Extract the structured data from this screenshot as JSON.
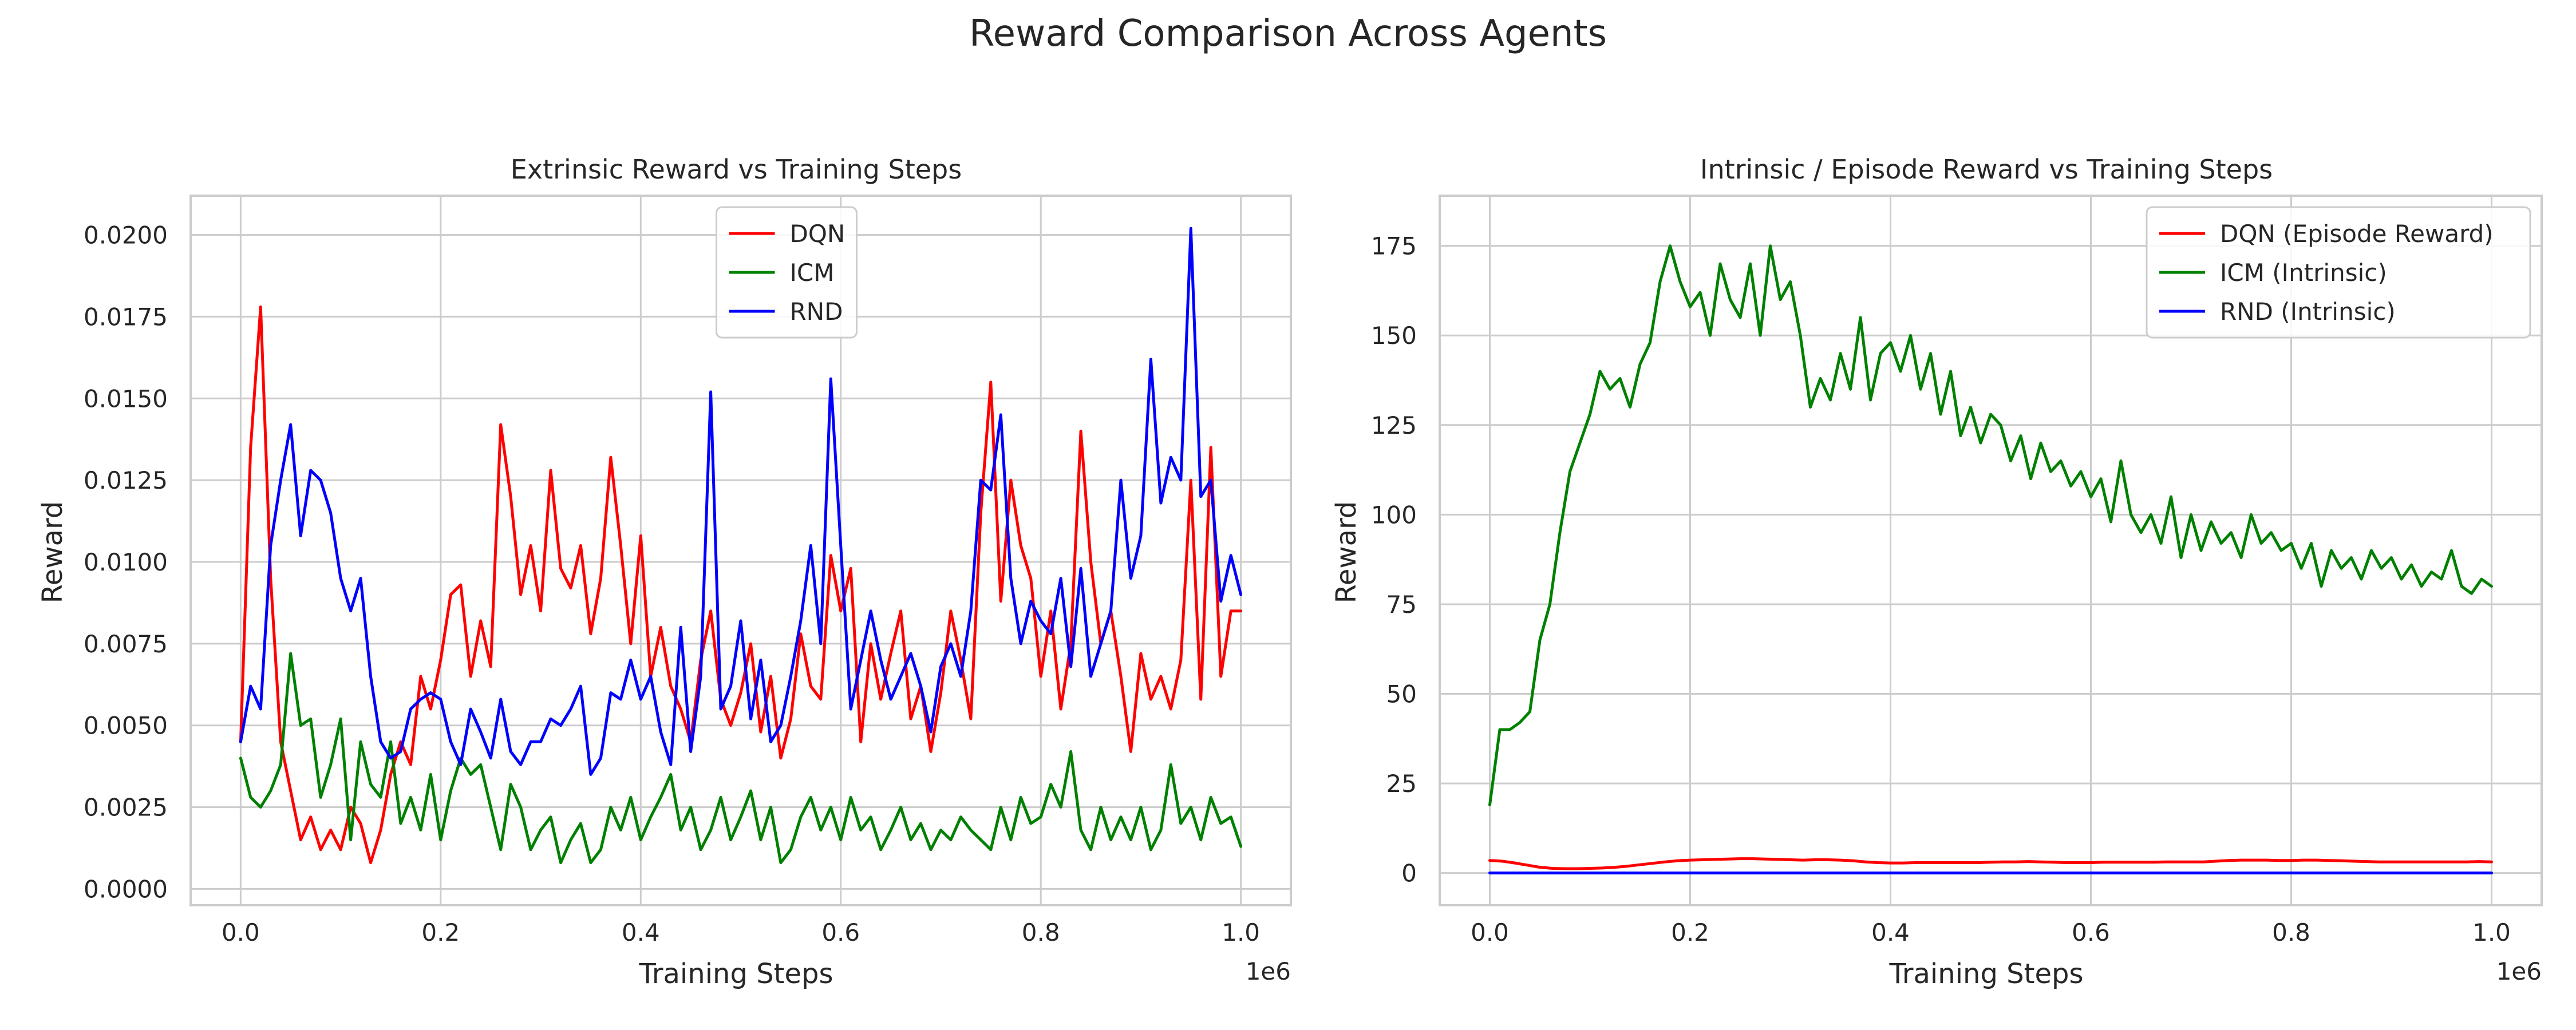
{
  "suptitle": "Reward Comparison Across Agents",
  "colors": {
    "DQN": "#ff0000",
    "ICM": "#008000",
    "RND": "#0000ff",
    "grid": "#cccccc",
    "frame": "#cccccc"
  },
  "chart_data": [
    {
      "type": "line",
      "title": "Extrinsic Reward vs Training Steps",
      "xlabel": "Training Steps",
      "ylabel": "Reward",
      "x_offset_label": "1e6",
      "x_scale": 1000000,
      "xlim": [
        -0.05,
        1.05
      ],
      "ylim": [
        -0.0005,
        0.0212
      ],
      "xticks": [
        0.0,
        0.2,
        0.4,
        0.6,
        0.8,
        1.0
      ],
      "xtick_labels": [
        "0.0",
        "0.2",
        "0.4",
        "0.6",
        "0.8",
        "1.0"
      ],
      "yticks": [
        0.0,
        0.0025,
        0.005,
        0.0075,
        0.01,
        0.0125,
        0.015,
        0.0175,
        0.02
      ],
      "ytick_labels": [
        "0.0000",
        "0.0025",
        "0.0050",
        "0.0075",
        "0.0100",
        "0.0125",
        "0.0150",
        "0.0175",
        "0.0200"
      ],
      "grid": true,
      "legend_position": "upper center",
      "x": [
        0.0,
        0.01,
        0.02,
        0.03,
        0.04,
        0.05,
        0.06,
        0.07,
        0.08,
        0.09,
        0.1,
        0.11,
        0.12,
        0.13,
        0.14,
        0.15,
        0.16,
        0.17,
        0.18,
        0.19,
        0.2,
        0.21,
        0.22,
        0.23,
        0.24,
        0.25,
        0.26,
        0.27,
        0.28,
        0.29,
        0.3,
        0.31,
        0.32,
        0.33,
        0.34,
        0.35,
        0.36,
        0.37,
        0.38,
        0.39,
        0.4,
        0.41,
        0.42,
        0.43,
        0.44,
        0.45,
        0.46,
        0.47,
        0.48,
        0.49,
        0.5,
        0.51,
        0.52,
        0.53,
        0.54,
        0.55,
        0.56,
        0.57,
        0.58,
        0.59,
        0.6,
        0.61,
        0.62,
        0.63,
        0.64,
        0.65,
        0.66,
        0.67,
        0.68,
        0.69,
        0.7,
        0.71,
        0.72,
        0.73,
        0.74,
        0.75,
        0.76,
        0.77,
        0.78,
        0.79,
        0.8,
        0.81,
        0.82,
        0.83,
        0.84,
        0.85,
        0.86,
        0.87,
        0.88,
        0.89,
        0.9,
        0.91,
        0.92,
        0.93,
        0.94,
        0.95,
        0.96,
        0.97,
        0.98,
        0.99,
        1.0
      ],
      "series": [
        {
          "name": "DQN",
          "color": "#ff0000",
          "values": [
            0.0045,
            0.0135,
            0.0178,
            0.0095,
            0.0045,
            0.003,
            0.0015,
            0.0022,
            0.0012,
            0.0018,
            0.0012,
            0.0025,
            0.002,
            0.0008,
            0.0018,
            0.0035,
            0.0045,
            0.0038,
            0.0065,
            0.0055,
            0.007,
            0.009,
            0.0093,
            0.0065,
            0.0082,
            0.0068,
            0.0142,
            0.012,
            0.009,
            0.0105,
            0.0085,
            0.0128,
            0.0098,
            0.0092,
            0.0105,
            0.0078,
            0.0095,
            0.0132,
            0.0105,
            0.0075,
            0.0108,
            0.0065,
            0.008,
            0.0062,
            0.0055,
            0.0045,
            0.007,
            0.0085,
            0.0058,
            0.005,
            0.006,
            0.0075,
            0.0048,
            0.0065,
            0.004,
            0.0052,
            0.0078,
            0.0062,
            0.0058,
            0.0102,
            0.0085,
            0.0098,
            0.0045,
            0.0075,
            0.0058,
            0.0072,
            0.0085,
            0.0052,
            0.0062,
            0.0042,
            0.006,
            0.0085,
            0.007,
            0.0052,
            0.0115,
            0.0155,
            0.0088,
            0.0125,
            0.0105,
            0.0095,
            0.0065,
            0.0085,
            0.0055,
            0.0075,
            0.014,
            0.01,
            0.0075,
            0.0085,
            0.0065,
            0.0042,
            0.0072,
            0.0058,
            0.0065,
            0.0055,
            0.007,
            0.0125,
            0.0058,
            0.0135,
            0.0065,
            0.0085,
            0.0085
          ]
        },
        {
          "name": "ICM",
          "color": "#008000",
          "values": [
            0.004,
            0.0028,
            0.0025,
            0.003,
            0.0038,
            0.0072,
            0.005,
            0.0052,
            0.0028,
            0.0038,
            0.0052,
            0.0015,
            0.0045,
            0.0032,
            0.0028,
            0.0045,
            0.002,
            0.0028,
            0.0018,
            0.0035,
            0.0015,
            0.003,
            0.004,
            0.0035,
            0.0038,
            0.0025,
            0.0012,
            0.0032,
            0.0025,
            0.0012,
            0.0018,
            0.0022,
            0.0008,
            0.0015,
            0.002,
            0.0008,
            0.0012,
            0.0025,
            0.0018,
            0.0028,
            0.0015,
            0.0022,
            0.0028,
            0.0035,
            0.0018,
            0.0025,
            0.0012,
            0.0018,
            0.0028,
            0.0015,
            0.0022,
            0.003,
            0.0015,
            0.0025,
            0.0008,
            0.0012,
            0.0022,
            0.0028,
            0.0018,
            0.0025,
            0.0015,
            0.0028,
            0.0018,
            0.0022,
            0.0012,
            0.0018,
            0.0025,
            0.0015,
            0.002,
            0.0012,
            0.0018,
            0.0015,
            0.0022,
            0.0018,
            0.0015,
            0.0012,
            0.0025,
            0.0015,
            0.0028,
            0.002,
            0.0022,
            0.0032,
            0.0025,
            0.0042,
            0.0018,
            0.0012,
            0.0025,
            0.0015,
            0.0022,
            0.0015,
            0.0025,
            0.0012,
            0.0018,
            0.0038,
            0.002,
            0.0025,
            0.0015,
            0.0028,
            0.002,
            0.0022,
            0.0013
          ]
        },
        {
          "name": "RND",
          "color": "#0000ff",
          "values": [
            0.0045,
            0.0062,
            0.0055,
            0.0105,
            0.0125,
            0.0142,
            0.0108,
            0.0128,
            0.0125,
            0.0115,
            0.0095,
            0.0085,
            0.0095,
            0.0065,
            0.0045,
            0.004,
            0.0042,
            0.0055,
            0.0058,
            0.006,
            0.0058,
            0.0045,
            0.0038,
            0.0055,
            0.0048,
            0.004,
            0.0058,
            0.0042,
            0.0038,
            0.0045,
            0.0045,
            0.0052,
            0.005,
            0.0055,
            0.0062,
            0.0035,
            0.004,
            0.006,
            0.0058,
            0.007,
            0.0058,
            0.0065,
            0.0048,
            0.0038,
            0.008,
            0.0042,
            0.0065,
            0.0152,
            0.0055,
            0.0062,
            0.0082,
            0.0052,
            0.007,
            0.0045,
            0.005,
            0.0065,
            0.0082,
            0.0105,
            0.0075,
            0.0156,
            0.0105,
            0.0055,
            0.007,
            0.0085,
            0.007,
            0.0058,
            0.0065,
            0.0072,
            0.0062,
            0.0048,
            0.0068,
            0.0075,
            0.0065,
            0.0085,
            0.0125,
            0.0122,
            0.0145,
            0.0095,
            0.0075,
            0.0088,
            0.0082,
            0.0078,
            0.0095,
            0.0068,
            0.0098,
            0.0065,
            0.0075,
            0.0085,
            0.0125,
            0.0095,
            0.0108,
            0.0162,
            0.0118,
            0.0132,
            0.0125,
            0.0202,
            0.012,
            0.0125,
            0.0088,
            0.0102,
            0.009
          ]
        }
      ]
    },
    {
      "type": "line",
      "title": "Intrinsic / Episode Reward vs Training Steps",
      "xlabel": "Training Steps",
      "ylabel": "Reward",
      "x_offset_label": "1e6",
      "x_scale": 1000000,
      "xlim": [
        -0.05,
        1.05
      ],
      "ylim": [
        -9,
        189
      ],
      "xticks": [
        0.0,
        0.2,
        0.4,
        0.6,
        0.8,
        1.0
      ],
      "xtick_labels": [
        "0.0",
        "0.2",
        "0.4",
        "0.6",
        "0.8",
        "1.0"
      ],
      "yticks": [
        0,
        25,
        50,
        75,
        100,
        125,
        150,
        175
      ],
      "ytick_labels": [
        "0",
        "25",
        "50",
        "75",
        "100",
        "125",
        "150",
        "175"
      ],
      "grid": true,
      "legend_position": "upper right",
      "x": [
        0.0,
        0.01,
        0.02,
        0.03,
        0.04,
        0.05,
        0.06,
        0.07,
        0.08,
        0.09,
        0.1,
        0.11,
        0.12,
        0.13,
        0.14,
        0.15,
        0.16,
        0.17,
        0.18,
        0.19,
        0.2,
        0.21,
        0.22,
        0.23,
        0.24,
        0.25,
        0.26,
        0.27,
        0.28,
        0.29,
        0.3,
        0.31,
        0.32,
        0.33,
        0.34,
        0.35,
        0.36,
        0.37,
        0.38,
        0.39,
        0.4,
        0.41,
        0.42,
        0.43,
        0.44,
        0.45,
        0.46,
        0.47,
        0.48,
        0.49,
        0.5,
        0.51,
        0.52,
        0.53,
        0.54,
        0.55,
        0.56,
        0.57,
        0.58,
        0.59,
        0.6,
        0.61,
        0.62,
        0.63,
        0.64,
        0.65,
        0.66,
        0.67,
        0.68,
        0.69,
        0.7,
        0.71,
        0.72,
        0.73,
        0.74,
        0.75,
        0.76,
        0.77,
        0.78,
        0.79,
        0.8,
        0.81,
        0.82,
        0.83,
        0.84,
        0.85,
        0.86,
        0.87,
        0.88,
        0.89,
        0.9,
        0.91,
        0.92,
        0.93,
        0.94,
        0.95,
        0.96,
        0.97,
        0.98,
        0.99,
        1.0
      ],
      "series": [
        {
          "name": "DQN (Episode Reward)",
          "color": "#ff0000",
          "values": [
            3.5,
            3.3,
            2.8,
            2.2,
            1.6,
            1.3,
            1.2,
            1.2,
            1.3,
            1.4,
            1.6,
            1.9,
            2.3,
            2.7,
            3.1,
            3.4,
            3.6,
            3.7,
            3.8,
            3.9,
            4.0,
            4.0,
            3.9,
            3.8,
            3.7,
            3.6,
            3.7,
            3.7,
            3.6,
            3.4,
            3.1,
            2.9,
            2.8,
            2.8,
            2.9,
            2.9,
            2.9,
            2.9,
            2.9,
            2.9,
            3.0,
            3.1,
            3.1,
            3.2,
            3.1,
            3.0,
            2.9,
            2.9,
            2.9,
            3.0,
            3.0,
            3.0,
            3.0,
            3.0,
            3.1,
            3.1,
            3.1,
            3.1,
            3.3,
            3.5,
            3.6,
            3.6,
            3.6,
            3.5,
            3.5,
            3.6,
            3.6,
            3.5,
            3.4,
            3.3,
            3.2,
            3.1,
            3.1,
            3.1,
            3.1,
            3.1,
            3.1,
            3.1,
            3.1,
            3.2,
            3.1
          ],
          "x": [
            0.0,
            0.0125,
            0.025,
            0.0375,
            0.05,
            0.0625,
            0.075,
            0.0875,
            0.1,
            0.1125,
            0.125,
            0.1375,
            0.15,
            0.1625,
            0.175,
            0.1875,
            0.2,
            0.2125,
            0.225,
            0.2375,
            0.25,
            0.2625,
            0.275,
            0.2875,
            0.3,
            0.3125,
            0.325,
            0.3375,
            0.35,
            0.3625,
            0.375,
            0.3875,
            0.4,
            0.4125,
            0.425,
            0.4375,
            0.45,
            0.4625,
            0.475,
            0.4875,
            0.5,
            0.5125,
            0.525,
            0.5375,
            0.55,
            0.5625,
            0.575,
            0.5875,
            0.6,
            0.6125,
            0.625,
            0.6375,
            0.65,
            0.6625,
            0.675,
            0.6875,
            0.7,
            0.7125,
            0.725,
            0.7375,
            0.75,
            0.7625,
            0.775,
            0.7875,
            0.8,
            0.8125,
            0.825,
            0.8375,
            0.85,
            0.8625,
            0.875,
            0.8875,
            0.9,
            0.9125,
            0.925,
            0.9375,
            0.95,
            0.9625,
            0.975,
            0.9875,
            1.0
          ]
        },
        {
          "name": "ICM (Intrinsic)",
          "color": "#008000",
          "values": [
            19,
            40,
            40,
            42,
            45,
            65,
            75,
            95,
            112,
            120,
            128,
            140,
            135,
            138,
            130,
            142,
            148,
            165,
            175,
            165,
            158,
            162,
            150,
            170,
            160,
            155,
            170,
            150,
            175,
            160,
            165,
            150,
            130,
            138,
            132,
            145,
            135,
            155,
            132,
            145,
            148,
            140,
            150,
            135,
            145,
            128,
            140,
            122,
            130,
            120,
            128,
            125,
            115,
            122,
            110,
            120,
            112,
            115,
            108,
            112,
            105,
            110,
            98,
            115,
            100,
            95,
            100,
            92,
            105,
            88,
            100,
            90,
            98,
            92,
            95,
            88,
            100,
            92,
            95,
            90,
            92,
            85,
            92,
            80,
            90,
            85,
            88,
            82,
            90,
            85,
            88,
            82,
            86,
            80,
            84,
            82,
            90,
            80,
            78,
            82,
            80
          ]
        },
        {
          "name": "RND (Intrinsic)",
          "color": "#0000ff",
          "values": [
            0,
            0,
            0,
            0,
            0,
            0,
            0,
            0,
            0,
            0,
            0
          ],
          "x": [
            0.0,
            0.1,
            0.2,
            0.3,
            0.4,
            0.5,
            0.6,
            0.7,
            0.8,
            0.9,
            1.0
          ]
        }
      ]
    }
  ]
}
